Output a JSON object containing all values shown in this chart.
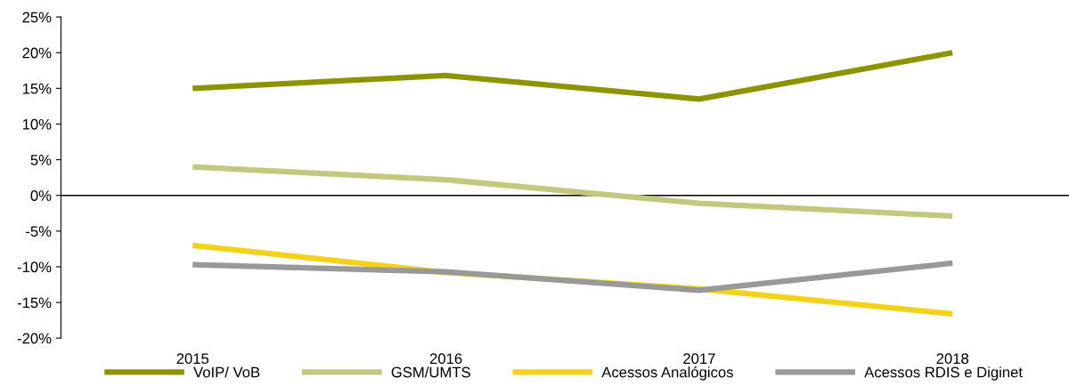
{
  "chart_data": {
    "type": "line",
    "categories": [
      "2015",
      "2016",
      "2017",
      "2018"
    ],
    "series": [
      {
        "name": "VoIP/ VoB",
        "color": "#8c9400",
        "values": [
          15,
          16.8,
          13.5,
          20
        ]
      },
      {
        "name": "GSM/UMTS",
        "color": "#c4c87e",
        "values": [
          4,
          2.2,
          -1.1,
          -2.9
        ]
      },
      {
        "name": "Acessos Analógicos",
        "color": "#f5d21a",
        "values": [
          -7,
          -10.8,
          -13.1,
          -16.6
        ]
      },
      {
        "name": "Acessos RDIS e Diginet",
        "color": "#999999",
        "values": [
          -9.7,
          -10.7,
          -13.3,
          -9.5
        ]
      }
    ],
    "ylim": [
      -20,
      25
    ],
    "yticks": [
      {
        "value": 25,
        "label": "25%"
      },
      {
        "value": 20,
        "label": "20%"
      },
      {
        "value": 15,
        "label": "15%"
      },
      {
        "value": 10,
        "label": "10%"
      },
      {
        "value": 5,
        "label": "5%"
      },
      {
        "value": 0,
        "label": "0%"
      },
      {
        "value": -5,
        "label": "-5%"
      },
      {
        "value": -10,
        "label": "-10%"
      },
      {
        "value": -15,
        "label": "-15%"
      },
      {
        "value": -20,
        "label": "-20%"
      }
    ],
    "ref_lines": [
      {
        "axis": "y",
        "value": 0,
        "color": "#000000"
      }
    ],
    "legend": "bottom",
    "grid": false,
    "marker": "none",
    "line_style": "solid"
  }
}
